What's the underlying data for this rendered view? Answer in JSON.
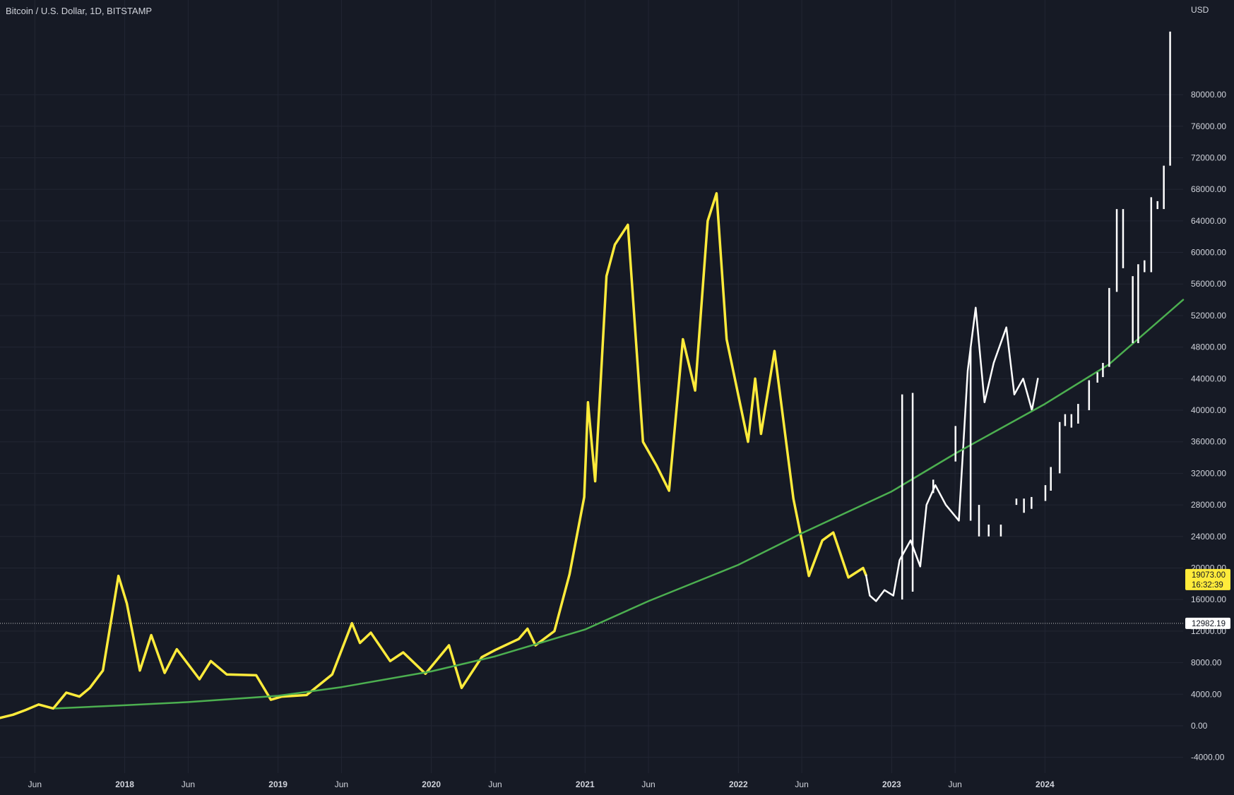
{
  "header": {
    "title": "Bitcoin / U.S. Dollar, 1D, BITSTAMP"
  },
  "axis": {
    "currency": "USD"
  },
  "price_label": {
    "value": "19073.00",
    "countdown": "16:32:39"
  },
  "level_label": {
    "value": "12982.19"
  },
  "colors": {
    "background": "#161a25",
    "grid": "#222633",
    "price": "#ffeb3b",
    "projection": "#ffffff",
    "curve": "#4caf50",
    "text": "#d1d4dc"
  },
  "chart_data": {
    "type": "line",
    "x_axis": "date",
    "ylim": [
      -6000,
      92000
    ],
    "xlim": [
      "2017-03-10",
      "2024-11-25"
    ],
    "y_ticks": [
      "-4000.00",
      "0.00",
      "4000.00",
      "8000.00",
      "12000.00",
      "16000.00",
      "20000.00",
      "24000.00",
      "28000.00",
      "32000.00",
      "36000.00",
      "40000.00",
      "44000.00",
      "48000.00",
      "52000.00",
      "56000.00",
      "60000.00",
      "64000.00",
      "68000.00",
      "72000.00",
      "76000.00",
      "80000.00"
    ],
    "x_ticks": [
      {
        "label": "Jun",
        "date": "2017-06-01"
      },
      {
        "label": "2018",
        "date": "2018-01-01",
        "year": true
      },
      {
        "label": "Jun",
        "date": "2018-06-01"
      },
      {
        "label": "2019",
        "date": "2019-01-01",
        "year": true
      },
      {
        "label": "Jun",
        "date": "2019-06-01"
      },
      {
        "label": "2020",
        "date": "2020-01-01",
        "year": true
      },
      {
        "label": "Jun",
        "date": "2020-06-01"
      },
      {
        "label": "2021",
        "date": "2021-01-01",
        "year": true
      },
      {
        "label": "Jun",
        "date": "2021-06-01"
      },
      {
        "label": "2022",
        "date": "2022-01-01",
        "year": true
      },
      {
        "label": "Jun",
        "date": "2022-06-01"
      },
      {
        "label": "2023",
        "date": "2023-01-01",
        "year": true
      },
      {
        "label": "Jun",
        "date": "2023-06-01"
      },
      {
        "label": "2024",
        "date": "2024-01-01",
        "year": true
      }
    ],
    "horizontal_level": 12982.19,
    "last_price": 19073,
    "series": [
      {
        "points": [
          [
            "2017-03-10",
            1000
          ],
          [
            "2017-04-10",
            1400
          ],
          [
            "2017-05-10",
            2000
          ],
          [
            "2017-06-10",
            2700
          ],
          [
            "2017-07-15",
            2200
          ],
          [
            "2017-08-15",
            4200
          ],
          [
            "2017-09-15",
            3700
          ],
          [
            "2017-10-10",
            4800
          ],
          [
            "2017-11-10",
            7000
          ],
          [
            "2017-12-17",
            19000
          ],
          [
            "2018-01-06",
            15500
          ],
          [
            "2018-02-06",
            7000
          ],
          [
            "2018-03-05",
            11500
          ],
          [
            "2018-04-06",
            6700
          ],
          [
            "2018-05-05",
            9700
          ],
          [
            "2018-06-28",
            5900
          ],
          [
            "2018-07-25",
            8200
          ],
          [
            "2018-09-01",
            6500
          ],
          [
            "2018-11-10",
            6400
          ],
          [
            "2018-12-15",
            3300
          ],
          [
            "2019-01-10",
            3700
          ],
          [
            "2019-03-10",
            3900
          ],
          [
            "2019-05-10",
            6500
          ],
          [
            "2019-06-26",
            13000
          ],
          [
            "2019-07-15",
            10500
          ],
          [
            "2019-08-10",
            11800
          ],
          [
            "2019-09-25",
            8200
          ],
          [
            "2019-10-26",
            9300
          ],
          [
            "2019-12-18",
            6600
          ],
          [
            "2020-02-12",
            10200
          ],
          [
            "2020-03-13",
            4800
          ],
          [
            "2020-04-30",
            8700
          ],
          [
            "2020-06-01",
            9600
          ],
          [
            "2020-07-27",
            11000
          ],
          [
            "2020-08-17",
            12300
          ],
          [
            "2020-09-05",
            10200
          ],
          [
            "2020-10-20",
            12000
          ],
          [
            "2020-11-25",
            19200
          ],
          [
            "2020-12-30",
            29000
          ],
          [
            "2021-01-08",
            41000
          ],
          [
            "2021-01-25",
            31000
          ],
          [
            "2021-02-21",
            57000
          ],
          [
            "2021-03-13",
            61000
          ],
          [
            "2021-04-13",
            63500
          ],
          [
            "2021-05-19",
            36000
          ],
          [
            "2021-06-20",
            33000
          ],
          [
            "2021-07-20",
            29800
          ],
          [
            "2021-08-22",
            49000
          ],
          [
            "2021-09-20",
            42500
          ],
          [
            "2021-10-20",
            64000
          ],
          [
            "2021-11-10",
            67500
          ],
          [
            "2021-12-04",
            49000
          ],
          [
            "2022-01-24",
            36000
          ],
          [
            "2022-02-10",
            44000
          ],
          [
            "2022-02-24",
            37000
          ],
          [
            "2022-03-28",
            47500
          ],
          [
            "2022-05-12",
            28800
          ],
          [
            "2022-06-18",
            19000
          ],
          [
            "2022-07-20",
            23500
          ],
          [
            "2022-08-15",
            24500
          ],
          [
            "2022-09-20",
            18800
          ],
          [
            "2022-10-25",
            20000
          ],
          [
            "2022-11-01",
            19073
          ]
        ],
        "color": "#ffeb3b"
      },
      {
        "points": [
          [
            "2022-11-01",
            19073
          ],
          [
            "2022-11-10",
            16500
          ],
          [
            "2022-11-25",
            15800
          ],
          [
            "2022-12-15",
            17200
          ],
          [
            "2023-01-05",
            16500
          ],
          [
            "2023-01-20",
            21000
          ],
          [
            "2023-02-15",
            23500
          ],
          [
            "2023-03-10",
            20200
          ],
          [
            "2023-03-25",
            28000
          ],
          [
            "2023-04-15",
            30500
          ],
          [
            "2023-05-10",
            28000
          ],
          [
            "2023-06-10",
            26000
          ],
          [
            "2023-07-01",
            45000
          ],
          [
            "2023-07-20",
            53000
          ],
          [
            "2023-08-10",
            41000
          ],
          [
            "2023-09-01",
            46000
          ],
          [
            "2023-10-01",
            50500
          ],
          [
            "2023-10-20",
            42000
          ],
          [
            "2023-11-10",
            44000
          ],
          [
            "2023-12-01",
            40000
          ],
          [
            "2023-12-15",
            44000
          ]
        ],
        "color": "#ffffff"
      },
      {
        "points": [
          [
            "2017-07-20",
            2200
          ],
          [
            "2018-01-01",
            2600
          ],
          [
            "2018-06-01",
            3000
          ],
          [
            "2019-01-01",
            3800
          ],
          [
            "2019-06-01",
            4900
          ],
          [
            "2020-01-01",
            6900
          ],
          [
            "2020-06-01",
            8800
          ],
          [
            "2021-01-01",
            12200
          ],
          [
            "2021-06-01",
            15800
          ],
          [
            "2022-01-01",
            20400
          ],
          [
            "2022-06-01",
            24400
          ],
          [
            "2023-01-01",
            29700
          ],
          [
            "2023-06-01",
            34500
          ],
          [
            "2024-01-01",
            40800
          ],
          [
            "2024-06-01",
            45800
          ],
          [
            "2024-11-25",
            54000
          ]
        ],
        "color": "#4caf50"
      }
    ],
    "bars": [
      {
        "date": "2023-01-26",
        "low": 16000,
        "high": 42000
      },
      {
        "date": "2023-02-20",
        "low": 17000,
        "high": 42200
      },
      {
        "date": "2023-04-10",
        "low": 29500,
        "high": 31200
      },
      {
        "date": "2023-06-02",
        "low": 33500,
        "high": 38000
      },
      {
        "date": "2023-07-08",
        "low": 26000,
        "high": 48000
      },
      {
        "date": "2023-07-28",
        "low": 24000,
        "high": 28000
      },
      {
        "date": "2023-08-20",
        "low": 24000,
        "high": 25500
      },
      {
        "date": "2023-09-18",
        "low": 24000,
        "high": 25500
      },
      {
        "date": "2023-10-25",
        "low": 28000,
        "high": 28800
      },
      {
        "date": "2023-11-12",
        "low": 27000,
        "high": 28800
      },
      {
        "date": "2023-11-30",
        "low": 27500,
        "high": 29000
      },
      {
        "date": "2024-01-02",
        "low": 28500,
        "high": 30500
      },
      {
        "date": "2024-01-15",
        "low": 29800,
        "high": 32800
      },
      {
        "date": "2024-02-05",
        "low": 32000,
        "high": 38500
      },
      {
        "date": "2024-02-18",
        "low": 38000,
        "high": 39500
      },
      {
        "date": "2024-03-04",
        "low": 37800,
        "high": 39500
      },
      {
        "date": "2024-03-20",
        "low": 38300,
        "high": 40800
      },
      {
        "date": "2024-04-15",
        "low": 40000,
        "high": 43800
      },
      {
        "date": "2024-05-05",
        "low": 43500,
        "high": 44800
      },
      {
        "date": "2024-05-18",
        "low": 44200,
        "high": 46000
      },
      {
        "date": "2024-06-02",
        "low": 45500,
        "high": 55500
      },
      {
        "date": "2024-06-20",
        "low": 55000,
        "high": 65500
      },
      {
        "date": "2024-07-05",
        "low": 58000,
        "high": 65500
      },
      {
        "date": "2024-07-28",
        "low": 48500,
        "high": 57000
      },
      {
        "date": "2024-08-10",
        "low": 48500,
        "high": 58500
      },
      {
        "date": "2024-08-25",
        "low": 57500,
        "high": 59000
      },
      {
        "date": "2024-09-10",
        "low": 57500,
        "high": 67000
      },
      {
        "date": "2024-09-25",
        "low": 65500,
        "high": 66500
      },
      {
        "date": "2024-10-10",
        "low": 65500,
        "high": 71000
      },
      {
        "date": "2024-10-25",
        "low": 71000,
        "high": 88000
      }
    ]
  }
}
